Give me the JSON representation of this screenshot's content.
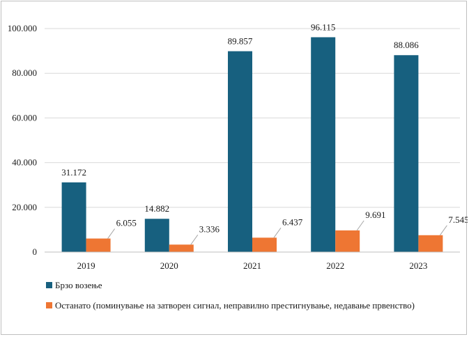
{
  "chart_data": {
    "type": "bar",
    "categories": [
      "2019",
      "2020",
      "2021",
      "2022",
      "2023"
    ],
    "series": [
      {
        "name": "Брзо возење",
        "values": [
          31172,
          14882,
          89857,
          96115,
          88086
        ],
        "labels": [
          "31.172",
          "14.882",
          "89.857",
          "96.115",
          "88.086"
        ],
        "color": "#17607f"
      },
      {
        "name": "Останато (поминување на затворен сигнал, неправилно престигнување, недавање првенство)",
        "values": [
          6055,
          3336,
          6437,
          9691,
          7545
        ],
        "labels": [
          "6.055",
          "3.336",
          "6.437",
          "9.691",
          "7.545"
        ],
        "color": "#ee7633"
      }
    ],
    "ylim": [
      0,
      100000
    ],
    "yticks": [
      0,
      20000,
      40000,
      60000,
      80000,
      100000
    ],
    "ytick_labels": [
      "0",
      "20.000",
      "40.000",
      "60.000",
      "80.000",
      "100.000"
    ],
    "grid": true,
    "legend_position": "bottom-left",
    "gridline_color": "#d9d9d9",
    "axis_color": "#bfbfbf"
  }
}
